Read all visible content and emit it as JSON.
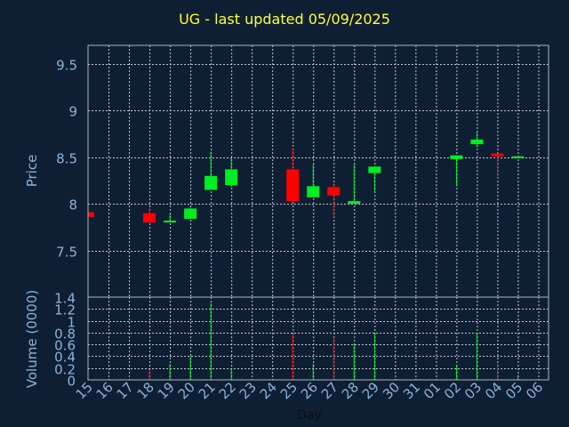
{
  "chart_data": [
    {
      "type": "candlestick",
      "title": "UG - last updated 05/09/2025",
      "ylabel": "Price",
      "ylim": [
        7.0,
        9.7
      ],
      "yticks": [
        7.5,
        8,
        8.5,
        9,
        9.5
      ],
      "ytick_labels": [
        "7.5",
        "8",
        "8.5",
        "9",
        "9.5"
      ],
      "grid": true,
      "colors": {
        "up": "#00ee22",
        "down": "#ff0000",
        "grid": "#c0c8d0",
        "axis_text": "#8ab3d8",
        "background": "#0f1f33",
        "title": "#ffff33"
      },
      "candles": [
        {
          "day": "15",
          "open": 7.91,
          "high": 7.91,
          "low": 7.86,
          "close": 7.86
        },
        {
          "day": "18",
          "open": 7.9,
          "high": 7.95,
          "low": 7.8,
          "close": 7.8
        },
        {
          "day": "19",
          "open": 7.81,
          "high": 7.89,
          "low": 7.81,
          "close": 7.82
        },
        {
          "day": "20",
          "open": 7.84,
          "high": 7.96,
          "low": 7.84,
          "close": 7.95
        },
        {
          "day": "21",
          "open": 8.15,
          "high": 8.56,
          "low": 8.15,
          "close": 8.3
        },
        {
          "day": "22",
          "open": 8.2,
          "high": 8.49,
          "low": 8.18,
          "close": 8.37
        },
        {
          "day": "25",
          "open": 8.37,
          "high": 8.59,
          "low": 8.02,
          "close": 8.03
        },
        {
          "day": "26",
          "open": 8.07,
          "high": 8.42,
          "low": 8.07,
          "close": 8.19
        },
        {
          "day": "27",
          "open": 8.18,
          "high": 8.22,
          "low": 7.86,
          "close": 8.09
        },
        {
          "day": "28",
          "open": 8.0,
          "high": 8.42,
          "low": 8.0,
          "close": 8.03
        },
        {
          "day": "29",
          "open": 8.33,
          "high": 8.4,
          "low": 8.12,
          "close": 8.4
        },
        {
          "day": "02",
          "open": 8.48,
          "high": 8.52,
          "low": 8.19,
          "close": 8.52
        },
        {
          "day": "03",
          "open": 8.64,
          "high": 8.77,
          "low": 8.61,
          "close": 8.69
        },
        {
          "day": "04",
          "open": 8.54,
          "high": 8.54,
          "low": 8.27,
          "close": 8.51
        },
        {
          "day": "05",
          "open": 8.5,
          "high": 8.51,
          "low": 8.5,
          "close": 8.51
        }
      ]
    },
    {
      "type": "bar",
      "xlabel": "Day",
      "ylabel": "Volume (0000)",
      "ylim": [
        0,
        1.4
      ],
      "yticks": [
        0,
        0.2,
        0.4,
        0.6,
        0.8,
        1,
        1.2,
        1.4
      ],
      "ytick_labels": [
        "0",
        "0.2",
        "0.4",
        "0.6",
        "0.8",
        "1",
        "1.2",
        "1.4"
      ],
      "categories": [
        "15",
        "16",
        "17",
        "18",
        "19",
        "20",
        "21",
        "22",
        "23",
        "24",
        "25",
        "26",
        "27",
        "28",
        "29",
        "30",
        "31",
        "01",
        "02",
        "03",
        "04",
        "05",
        "06"
      ],
      "values": [
        0,
        0,
        0,
        0.17,
        0.27,
        0.4,
        1.3,
        0.2,
        0,
        0,
        0.78,
        0.27,
        0.7,
        0.6,
        0.8,
        0,
        0,
        0,
        0.25,
        0.8,
        0.28,
        0.08,
        0
      ],
      "bar_colors": [
        "",
        "",
        "",
        "down",
        "up",
        "up",
        "up",
        "up",
        "",
        "",
        "down",
        "up",
        "down",
        "up",
        "up",
        "",
        "",
        "",
        "up",
        "up",
        "down",
        "up",
        ""
      ]
    }
  ]
}
